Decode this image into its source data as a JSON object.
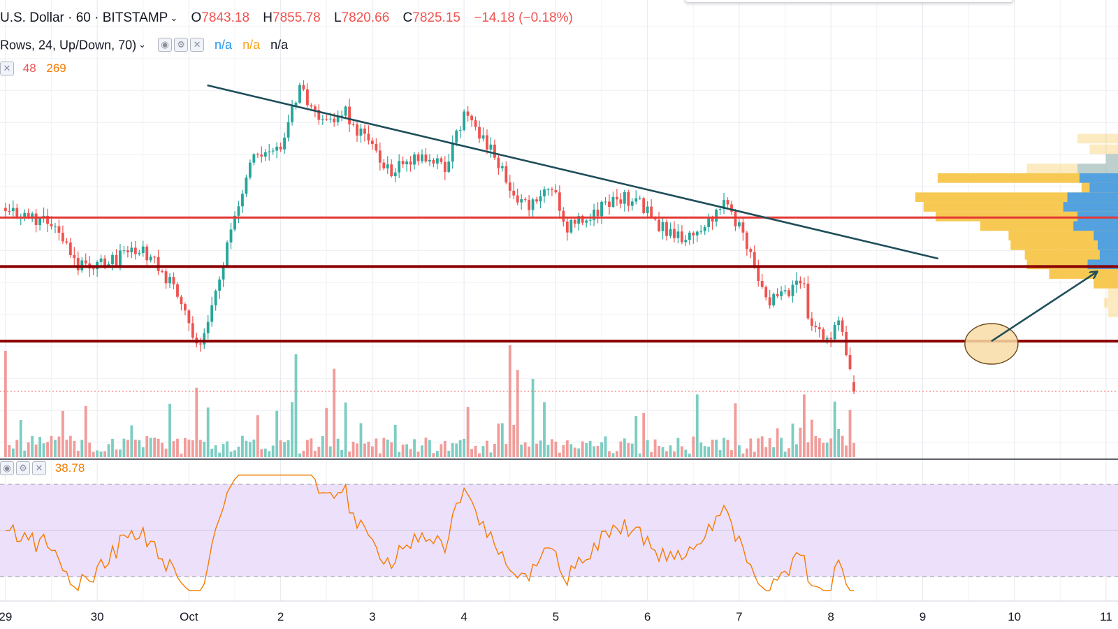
{
  "header": {
    "symbol_title": "U.S. Dollar · 60 · BITSTAMP",
    "open_label": "O",
    "open": "7843.18",
    "high_label": "H",
    "high": "7855.78",
    "low_label": "L",
    "low": "7820.66",
    "close_label": "C",
    "close": "7825.15",
    "change": "−14.18 (−0.18%)"
  },
  "indicators": {
    "volume_profile": {
      "title": "Rows, 24, Up/Down, 70)",
      "values": [
        "n/a",
        "n/a",
        "n/a"
      ]
    },
    "volume": {
      "values": [
        "48",
        "269"
      ]
    },
    "rsi": {
      "value": "38.78"
    }
  },
  "icons": [
    "eye-icon",
    "gear-icon",
    "close-icon",
    "chevron-down-icon"
  ],
  "colors": {
    "up": "#26a69a",
    "down": "#ef5350",
    "volume_up": "#7ccdc2",
    "volume_down": "#f19c9a",
    "support_lines": "#8b0000",
    "resistance_line": "#e53935",
    "trendline": "#1f4e5a",
    "rsi_line": "#f57c00",
    "rsi_band": "#ede0fb",
    "profile_total": "#f7c64a",
    "profile_up": "#4a9fe6",
    "target_ellipse": "#f8dca6"
  },
  "chart_data": {
    "type": "candlestick",
    "x_axis_ticks": [
      "29",
      "30",
      "Oct",
      "2",
      "3",
      "4",
      "5",
      "6",
      "7",
      "8",
      "9",
      "10",
      "11"
    ],
    "ylim": [
      7700,
      8560
    ],
    "x_range_days": [
      -2.06,
      10.13
    ],
    "series": [
      {
        "name": "Price",
        "anchors_day_close": [
          [
            -2.0,
            8170
          ],
          [
            -1.5,
            8140
          ],
          [
            -1.2,
            8060
          ],
          [
            -0.9,
            8070
          ],
          [
            -0.5,
            8090
          ],
          [
            -0.15,
            8020
          ],
          [
            0.1,
            7905
          ],
          [
            0.3,
            8010
          ],
          [
            0.5,
            8160
          ],
          [
            0.7,
            8270
          ],
          [
            1.0,
            8290
          ],
          [
            1.2,
            8390
          ],
          [
            1.5,
            8330
          ],
          [
            1.7,
            8350
          ],
          [
            1.9,
            8300
          ],
          [
            2.2,
            8240
          ],
          [
            2.5,
            8270
          ],
          [
            2.8,
            8250
          ],
          [
            3.0,
            8340
          ],
          [
            3.3,
            8280
          ],
          [
            3.55,
            8190
          ],
          [
            3.7,
            8170
          ],
          [
            3.95,
            8220
          ],
          [
            4.1,
            8130
          ],
          [
            4.4,
            8160
          ],
          [
            4.7,
            8190
          ],
          [
            4.9,
            8180
          ],
          [
            5.1,
            8140
          ],
          [
            5.4,
            8110
          ],
          [
            5.7,
            8150
          ],
          [
            5.85,
            8180
          ],
          [
            6.1,
            8100
          ],
          [
            6.3,
            7990
          ],
          [
            6.5,
            8010
          ],
          [
            6.7,
            8040
          ],
          [
            6.75,
            7960
          ],
          [
            6.95,
            7925
          ],
          [
            7.1,
            7950
          ],
          [
            7.25,
            7826
          ]
        ]
      },
      {
        "name": "Volume",
        "ylim": [
          0,
          1000
        ],
        "spikes_day_value": [
          [
            -2.0,
            950
          ],
          [
            -0.2,
            920
          ],
          [
            0.1,
            620
          ],
          [
            1.15,
            920
          ],
          [
            1.6,
            790
          ],
          [
            1.72,
            820
          ],
          [
            3.5,
            1000
          ],
          [
            3.6,
            780
          ],
          [
            3.75,
            700
          ],
          [
            5.55,
            560
          ],
          [
            5.95,
            480
          ],
          [
            6.6,
            580
          ],
          [
            6.72,
            560
          ],
          [
            7.1,
            250
          ]
        ]
      },
      {
        "name": "RSI",
        "ylim": [
          20,
          80
        ],
        "bands": [
          30,
          70
        ]
      }
    ],
    "levels": [
      {
        "type": "resistance",
        "value": 8152
      },
      {
        "type": "support",
        "value": 8060
      },
      {
        "type": "support",
        "value": 7920
      }
    ],
    "trendline": {
      "from": [
        0.2,
        8400
      ],
      "to": [
        8.17,
        8075
      ]
    },
    "current_price_line": 7826,
    "volume_profile": {
      "rows_price": [
        8300,
        8280,
        8262,
        8244,
        8226,
        8208,
        8190,
        8172,
        8154,
        8136,
        8118,
        8100,
        8082,
        8064,
        8046,
        8028,
        8010,
        7992,
        7974
      ],
      "total": [
        0.2,
        0.14,
        0.06,
        0.45,
        0.89,
        0.18,
        1.0,
        0.96,
        0.9,
        0.68,
        0.54,
        0.53,
        0.46,
        0.45,
        0.34,
        0.12,
        0.05,
        0.07,
        0.05
      ],
      "up": [
        0.0,
        0.0,
        0.06,
        0.2,
        0.19,
        0.14,
        0.25,
        0.27,
        0.2,
        0.22,
        0.12,
        0.1,
        0.09,
        0.15,
        0.0,
        0.0,
        0.0,
        0.0,
        0.0
      ]
    },
    "annotations": [
      {
        "type": "target-ellipse",
        "center": [
          8.75,
          7915
        ]
      },
      {
        "type": "arrow",
        "from": [
          8.75,
          7920
        ],
        "to": [
          9.9,
          8050
        ]
      }
    ]
  }
}
